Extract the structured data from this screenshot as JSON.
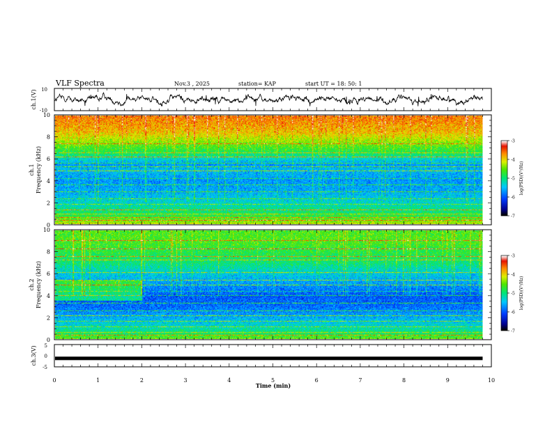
{
  "header": {
    "title": "VLF Spectra",
    "date": "Nov.3 , 2025",
    "station": "station= KAP",
    "start": "start UT = 18: 50: 1"
  },
  "chart_data": [
    {
      "type": "line",
      "name": "ch1-waveform",
      "ylabel": "ch.1(V)",
      "ylim": [
        -10,
        10
      ],
      "yticks": [
        10,
        -10
      ],
      "xlim": [
        0,
        10
      ],
      "note": "noisy voltage trace between about -4 and 5 V, ending near 9.8 min"
    },
    {
      "type": "heatmap",
      "name": "ch1-spectrogram",
      "ylabel": "ch.1 Frequency (kHz)",
      "ylim": [
        0,
        10
      ],
      "yticks": [
        0,
        2,
        4,
        6,
        8,
        10
      ],
      "xlim": [
        0,
        10
      ],
      "data_end_min": 9.8,
      "colorbar": {
        "label": "log(PSD)(V²/Hz)",
        "range": [
          -7,
          -3
        ],
        "ticks": [
          -3,
          -4,
          -5,
          -6,
          -7
        ]
      },
      "log_psd_profile": {
        "freq_khz": [
          0,
          0.5,
          1,
          2,
          3,
          4,
          5,
          5.5,
          6,
          6.5,
          7.5,
          8.5,
          10
        ],
        "value": [
          -4.2,
          -4.6,
          -4.9,
          -5.3,
          -5.6,
          -5.7,
          -5.5,
          -5.7,
          -5.3,
          -4.9,
          -4.4,
          -3.9,
          -3.6
        ]
      }
    },
    {
      "type": "heatmap",
      "name": "ch2-spectrogram",
      "ylabel": "ch.2 Frequency (kHz)",
      "ylim": [
        0,
        10
      ],
      "yticks": [
        0,
        2,
        4,
        6,
        8,
        10
      ],
      "xlim": [
        0,
        10
      ],
      "data_end_min": 9.8,
      "colorbar": {
        "label": "log(PSD)(V²/Hz)",
        "range": [
          -7,
          -3
        ],
        "ticks": [
          -3,
          -4,
          -5,
          -6,
          -7
        ]
      },
      "log_psd_profile": {
        "freq_khz": [
          0,
          0.5,
          1,
          2,
          3,
          4,
          5,
          6,
          7,
          8,
          9,
          10
        ],
        "value": [
          -4.5,
          -4.9,
          -5.2,
          -5.6,
          -5.9,
          -6.0,
          -5.7,
          -5.4,
          -5.0,
          -4.8,
          -4.6,
          -4.6
        ]
      }
    },
    {
      "type": "line",
      "name": "ch3-signal",
      "ylabel": "ch.3(V)",
      "ylim": [
        -5,
        5
      ],
      "yticks": [
        5,
        0,
        -5
      ],
      "level_v": -1.2,
      "xlim": [
        0,
        10
      ],
      "xlabel": "Time (min)",
      "xticks": [
        0,
        1,
        2,
        3,
        4,
        5,
        6,
        7,
        8,
        9,
        10
      ]
    }
  ]
}
